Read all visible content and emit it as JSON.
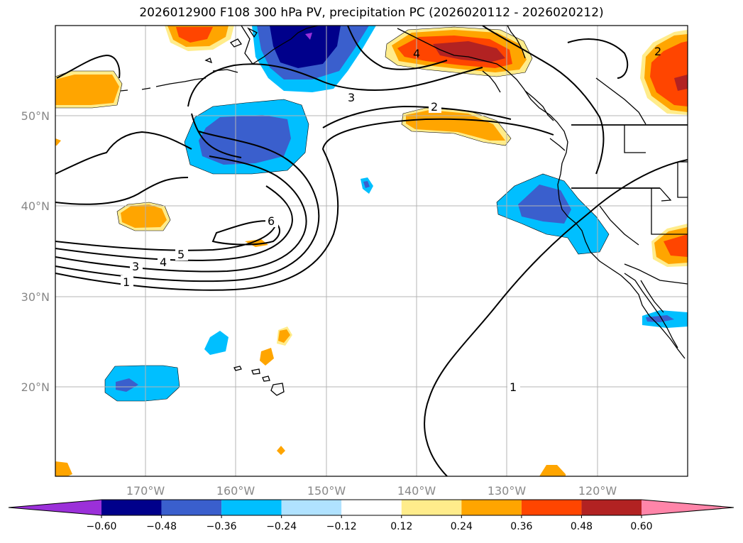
{
  "title": "2026012900 F108 300 hPa PV, precipitation PC (2026020112 - 2026020212)",
  "lat_labels": [
    "50°N",
    "40°N",
    "30°N",
    "20°N"
  ],
  "lon_labels": [
    "170°W",
    "160°W",
    "150°W",
    "140°W",
    "130°W",
    "120°W"
  ],
  "contour_labels": [
    "1",
    "3",
    "4",
    "5",
    "6",
    "3",
    "2",
    "4",
    "2",
    "1"
  ],
  "colorbar": {
    "colors": [
      "#9b30d9",
      "#00008b",
      "#3a5fcd",
      "#00bfff",
      "#b0e2ff",
      "#ffffff",
      "#ffec8b",
      "#ffa500",
      "#ff4500",
      "#b22222",
      "#ff85a9"
    ],
    "ticks": [
      "−0.60",
      "−0.48",
      "−0.36",
      "−0.24",
      "−0.12",
      "0.12",
      "0.24",
      "0.36",
      "0.48",
      "0.60"
    ]
  },
  "colors": {
    "grid": "#b4b4b4",
    "contour": "#000000",
    "neg_light": "#00bfff",
    "neg_mid": "#3a5fcd",
    "neg_dark": "#00008b",
    "pos_light": "#ffec8b",
    "pos_mid": "#ffa500",
    "pos_strong": "#ff4500",
    "pos_dark": "#b22222"
  }
}
